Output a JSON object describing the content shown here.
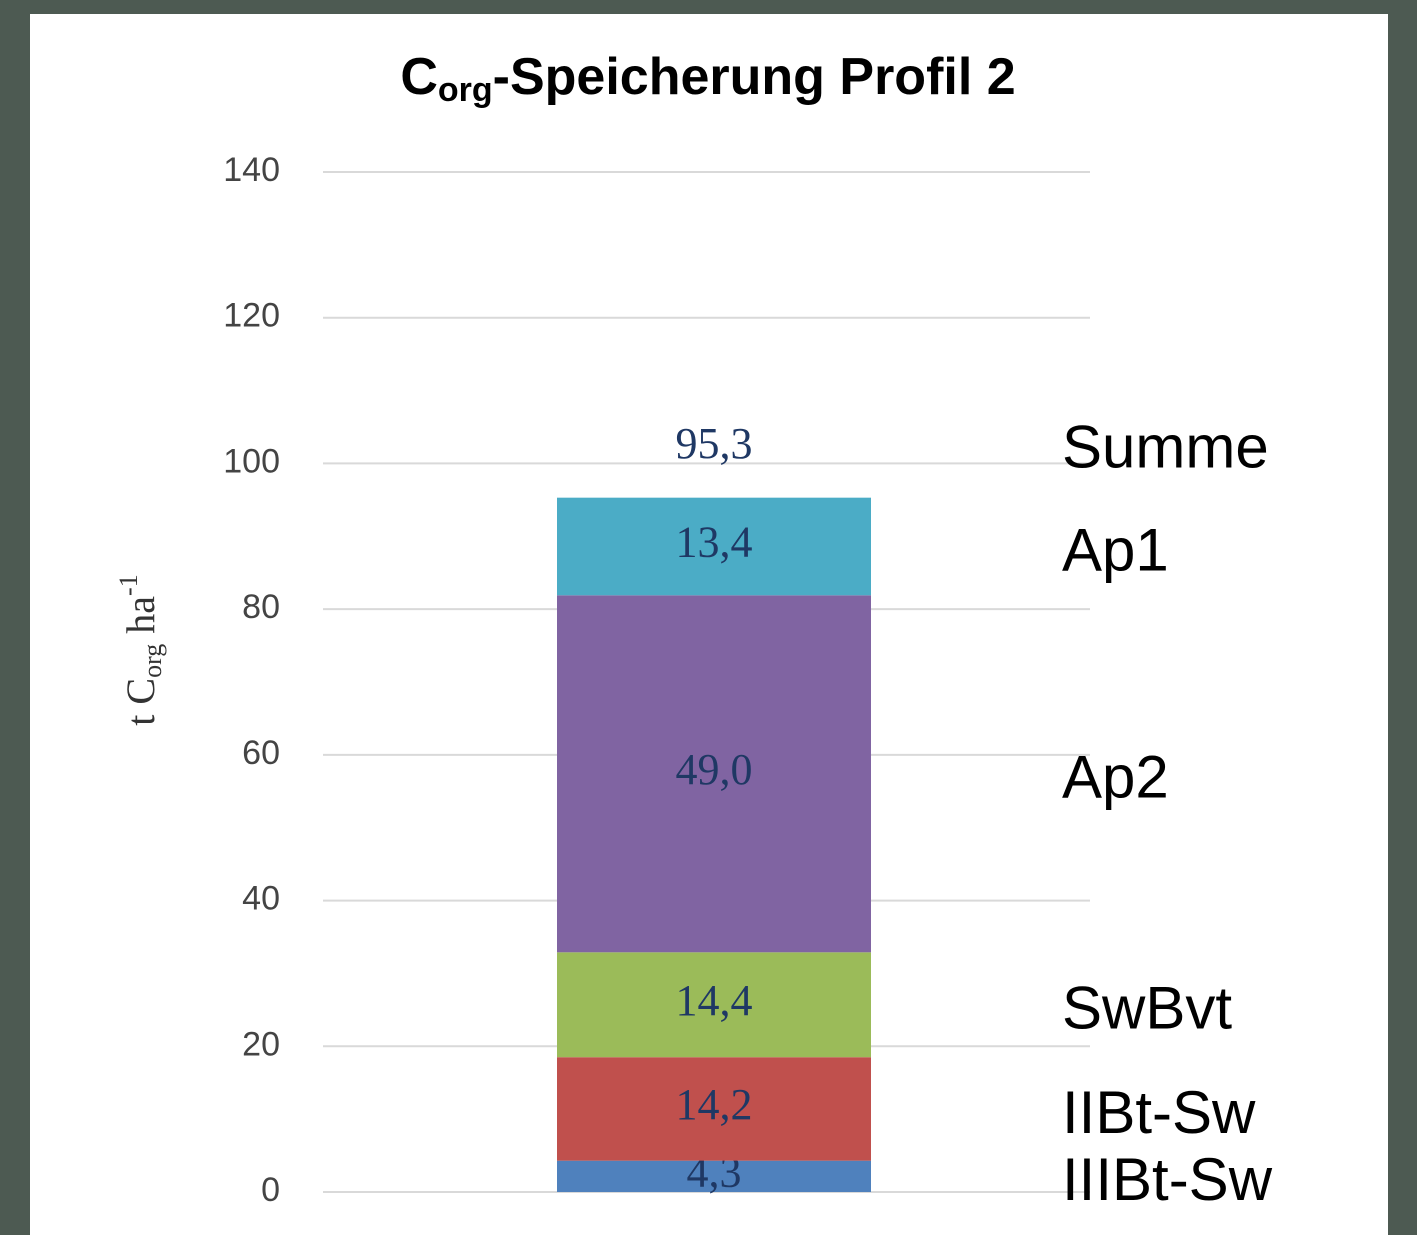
{
  "chart_data": {
    "type": "stacked_bar",
    "title": {
      "main": "C",
      "sub": "org",
      "rest": "-Speicherung Profil 2"
    },
    "ylabel": {
      "main": "t C",
      "sub": "org",
      "mid": " ha",
      "sup": "-1"
    },
    "categories": [
      null
    ],
    "series": [
      {
        "name": "IIIBt-Sw",
        "color": "#4f81bd",
        "values": [
          4.3
        ],
        "value_labels": [
          "4,3"
        ]
      },
      {
        "name": "IIBt-Sw",
        "color": "#c0504d",
        "values": [
          14.2
        ],
        "value_labels": [
          "14,2"
        ]
      },
      {
        "name": "SwBvt",
        "color": "#9bbb59",
        "values": [
          14.4
        ],
        "value_labels": [
          "14,4"
        ]
      },
      {
        "name": "Ap2",
        "color": "#8064a2",
        "values": [
          49.0
        ],
        "value_labels": [
          "49,0"
        ]
      },
      {
        "name": "Ap1",
        "color": "#4bacc6",
        "values": [
          13.4
        ],
        "value_labels": [
          "13,4"
        ]
      }
    ],
    "total": {
      "name": "Summe",
      "values": [
        95.3
      ],
      "value_labels": [
        "95,3"
      ]
    },
    "ylim": [
      0,
      140
    ],
    "yticks": [
      0,
      20,
      40,
      60,
      80,
      100,
      120,
      140
    ],
    "grid": true
  }
}
